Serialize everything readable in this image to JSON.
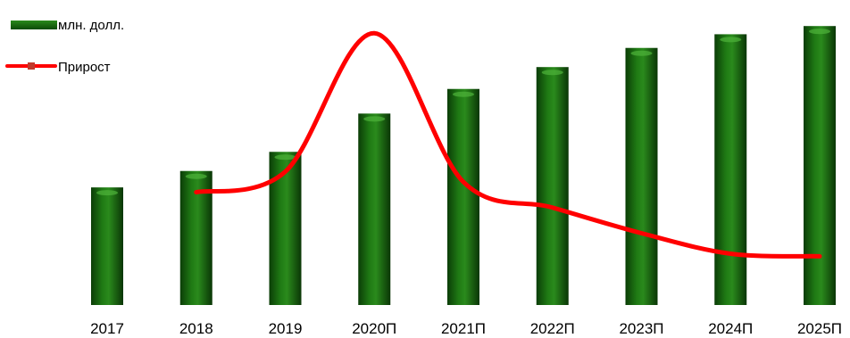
{
  "chart_data": {
    "type": "bar",
    "categories": [
      "2017",
      "2018",
      "2019",
      "2020П",
      "2021П",
      "2022П",
      "2023П",
      "2024П",
      "2025П"
    ],
    "series": [
      {
        "name": "млн. долл.",
        "type": "bar",
        "color": "#1c6b12",
        "values": [
          43,
          49,
          56,
          70,
          79,
          87,
          94,
          99,
          102
        ]
      },
      {
        "name": "Прирост",
        "type": "line",
        "color": "#ff0000",
        "values": [
          null,
          14,
          18,
          45,
          16,
          11,
          6,
          2,
          1.5
        ]
      }
    ],
    "ylim": [
      0,
      105
    ],
    "y2lim": [
      -8,
      48
    ],
    "grid": false,
    "legend_position": "top-left"
  }
}
